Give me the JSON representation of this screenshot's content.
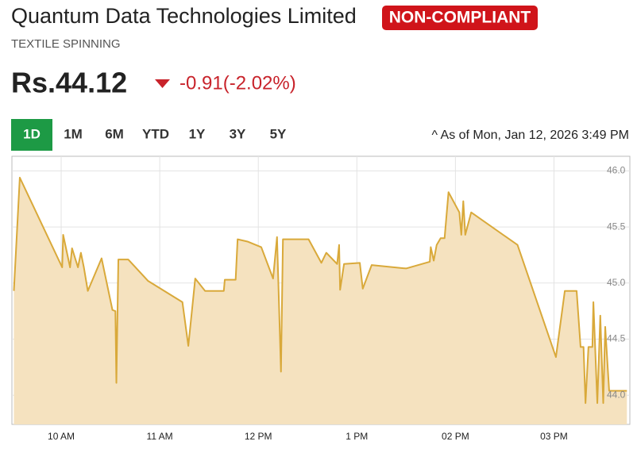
{
  "header": {
    "title": "Quantum Data Technologies Limited",
    "badge": "NON-COMPLIANT",
    "subtitle": "TEXTILE SPINNING",
    "price": "Rs.44.12",
    "change": "-0.91(-2.02%)"
  },
  "tabs": [
    "1D",
    "1M",
    "6M",
    "YTD",
    "1Y",
    "3Y",
    "5Y"
  ],
  "active_tab": 0,
  "as_of": "^ As of Mon, Jan 12, 2026 3:49 PM",
  "chart_data": {
    "type": "area",
    "color": "#d9a93a",
    "fill": "#f5e2bf",
    "x": [
      9.52,
      9.58,
      10.01,
      10.02,
      10.09,
      10.11,
      10.17,
      10.2,
      10.23,
      10.27,
      10.41,
      10.52,
      10.55,
      10.56,
      10.58,
      10.68,
      10.88,
      11.23,
      11.29,
      11.36,
      11.46,
      11.65,
      11.66,
      11.77,
      11.79,
      11.89,
      12.03,
      12.15,
      12.19,
      12.23,
      12.25,
      12.51,
      12.64,
      12.69,
      12.8,
      12.82,
      12.83,
      12.87,
      13.03,
      13.06,
      13.15,
      13.5,
      13.74,
      13.75,
      13.78,
      13.81,
      13.85,
      13.89,
      13.93,
      14.04,
      14.06,
      14.08,
      14.1,
      14.16,
      14.63,
      15.02,
      15.11,
      15.23,
      15.27,
      15.3,
      15.32,
      15.35,
      15.39,
      15.4,
      15.44,
      15.47,
      15.5,
      15.52,
      15.56,
      15.74
    ],
    "values": [
      44.93,
      45.94,
      45.14,
      45.43,
      45.14,
      45.31,
      45.14,
      45.27,
      45.14,
      44.93,
      45.22,
      44.76,
      44.75,
      44.11,
      45.21,
      45.21,
      45.02,
      44.83,
      44.44,
      45.04,
      44.93,
      44.93,
      45.03,
      45.03,
      45.39,
      45.37,
      45.32,
      45.04,
      45.41,
      44.21,
      45.39,
      45.39,
      45.18,
      45.27,
      45.17,
      45.34,
      44.94,
      45.17,
      45.18,
      44.95,
      45.16,
      45.13,
      45.19,
      45.32,
      45.2,
      45.34,
      45.4,
      45.4,
      45.81,
      45.63,
      45.43,
      45.73,
      45.43,
      45.63,
      45.34,
      44.34,
      44.93,
      44.93,
      44.43,
      44.43,
      43.93,
      44.43,
      44.43,
      44.83,
      43.93,
      44.71,
      43.93,
      44.61,
      44.04,
      44.04
    ],
    "xlim": [
      9.5,
      15.77
    ],
    "xticks": [
      {
        "value": 10,
        "label": "10 AM"
      },
      {
        "value": 11,
        "label": "11 AM"
      },
      {
        "value": 12,
        "label": "12 PM"
      },
      {
        "value": 13,
        "label": "1 PM"
      },
      {
        "value": 14,
        "label": "02 PM"
      },
      {
        "value": 15,
        "label": "03 PM"
      }
    ],
    "ylim": [
      43.74,
      46.13
    ],
    "yticks": [
      {
        "value": 44,
        "label": "44.0"
      },
      44.5,
      {
        "value": 45,
        "label": "45.0"
      },
      45.5,
      {
        "value": 46,
        "label": "46.0"
      }
    ],
    "grid": true
  }
}
